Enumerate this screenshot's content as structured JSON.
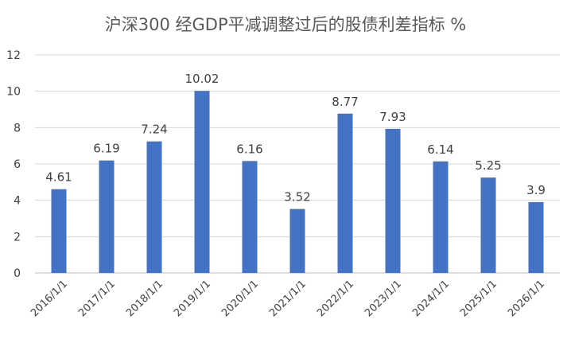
{
  "chart_data": {
    "type": "bar",
    "title": "沪深300 经GDP平减调整过后的股债利差指标 %",
    "categories": [
      "2016/1/1",
      "2017/1/1",
      "2018/1/1",
      "2019/1/1",
      "2020/1/1",
      "2021/1/1",
      "2022/1/1",
      "2023/1/1",
      "2024/1/1",
      "2025/1/1",
      "2026/1/1"
    ],
    "values": [
      4.61,
      6.19,
      7.24,
      10.02,
      6.16,
      3.52,
      8.77,
      7.93,
      6.14,
      5.25,
      3.9
    ],
    "data_labels": [
      "4.61",
      "6.19",
      "7.24",
      "10.02",
      "6.16",
      "3.52",
      "8.77",
      "7.93",
      "6.14",
      "5.25",
      "3.9"
    ],
    "y_ticks": [
      "0",
      "2",
      "4",
      "6",
      "8",
      "10",
      "12"
    ],
    "xlabel": "",
    "ylabel": "",
    "ylim": [
      0,
      12
    ],
    "grid": true,
    "legend": "none",
    "colors": {
      "bar": "#4472C4",
      "grid": "#D9D9D9",
      "text": "#404040",
      "title": "#595959"
    }
  }
}
